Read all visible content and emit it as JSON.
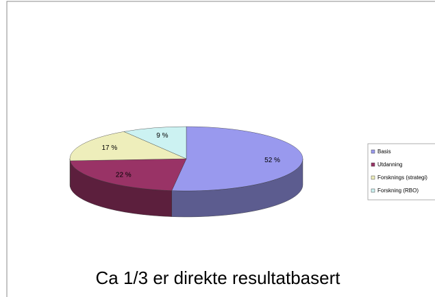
{
  "chart_data": {
    "type": "pie",
    "categories": [
      "Basis",
      "Utdanning",
      "Forsknings (strategi)",
      "Forskning (RBO)"
    ],
    "values": [
      52,
      22,
      17,
      9
    ],
    "value_labels": [
      "52 %",
      "22 %",
      "17 %",
      "9 %"
    ],
    "colors": [
      "#9999ee",
      "#993366",
      "#eeeebb",
      "#ccf2f2"
    ],
    "caption": "Ca 1/3 er direkte resultatbasert"
  }
}
